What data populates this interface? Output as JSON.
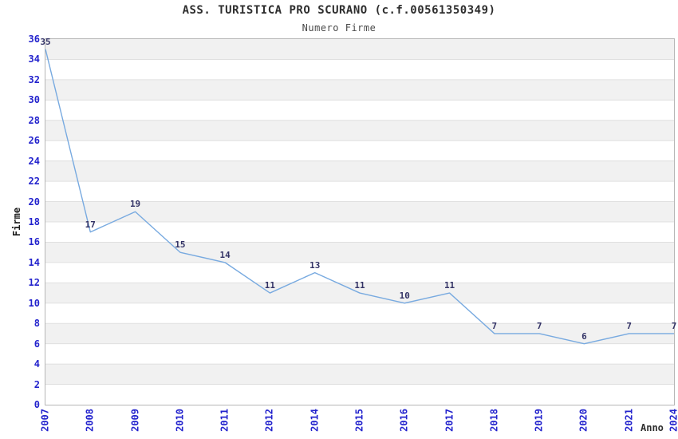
{
  "chart_data": {
    "type": "line",
    "title": "ASS. TURISTICA PRO SCURANO (c.f.00561350349)",
    "subtitle": "Numero Firme",
    "xlabel": "Anno",
    "ylabel": "Firme",
    "categories": [
      "2007",
      "2008",
      "2009",
      "2010",
      "2011",
      "2012",
      "2014",
      "2015",
      "2016",
      "2017",
      "2018",
      "2019",
      "2020",
      "2021",
      "2024"
    ],
    "values": [
      35,
      17,
      19,
      15,
      14,
      11,
      13,
      11,
      10,
      11,
      7,
      7,
      6,
      7,
      7
    ],
    "ylim": [
      0,
      36
    ],
    "ytick_step": 2,
    "grid": true,
    "band_fill": "alternating horizontal bands",
    "legend": "none",
    "colors": {
      "line": "#78aae0",
      "tick_label": "#2323cd",
      "data_label": "#333366",
      "band": "#f1f1f1",
      "gridline": "#e0e0e0",
      "plot_border": "#b6b6b6",
      "title_text": "#2e2e2e"
    }
  }
}
